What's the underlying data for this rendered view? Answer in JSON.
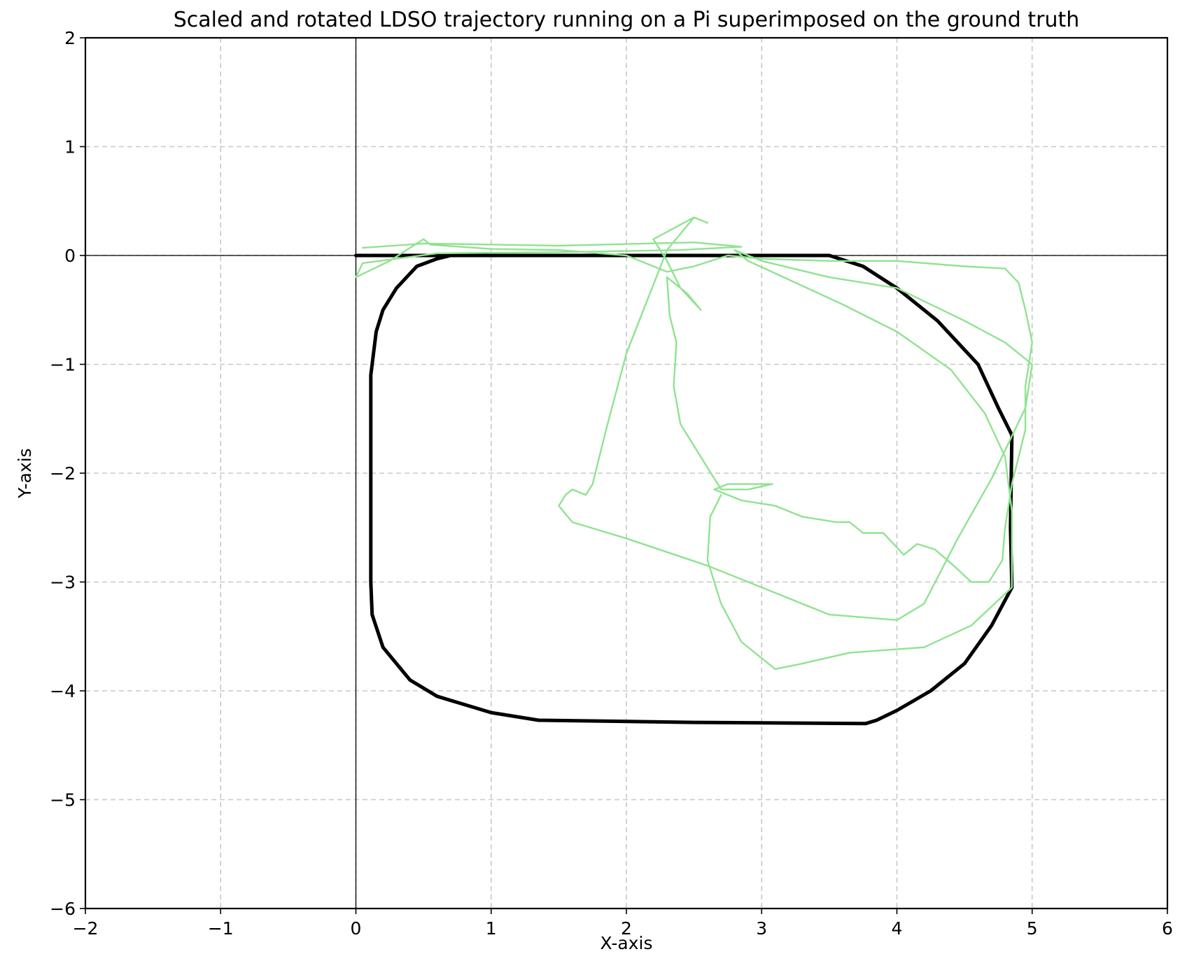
{
  "chart_data": {
    "type": "line",
    "title": "Scaled and rotated LDSO trajectory running on a Pi superimposed on the ground truth",
    "xlabel": "X-axis",
    "ylabel": "Y-axis",
    "xlim": [
      -2,
      6
    ],
    "ylim": [
      -6,
      2
    ],
    "xticks": [
      -2,
      -1,
      0,
      1,
      2,
      3,
      4,
      5,
      6
    ],
    "yticks": [
      -6,
      -5,
      -4,
      -3,
      -2,
      -1,
      0,
      1,
      2
    ],
    "xtick_labels": [
      "−2",
      "−1",
      "0",
      "1",
      "2",
      "3",
      "4",
      "5",
      "6"
    ],
    "ytick_labels": [
      "−6",
      "−5",
      "−4",
      "−3",
      "−2",
      "−1",
      "0",
      "1",
      "2"
    ],
    "grid": true,
    "reference_lines": {
      "x": 0,
      "y": 0
    },
    "series": [
      {
        "color": "#000000",
        "style": "solid-thick",
        "points": [
          [
            0.0,
            0.0
          ],
          [
            0.6,
            0.0
          ],
          [
            1.5,
            0.0
          ],
          [
            2.5,
            0.0
          ],
          [
            3.5,
            0.0
          ],
          [
            3.75,
            -0.1
          ],
          [
            4.0,
            -0.3
          ],
          [
            4.3,
            -0.6
          ],
          [
            4.6,
            -1.0
          ],
          [
            4.75,
            -1.4
          ],
          [
            4.85,
            -1.65
          ],
          [
            4.84,
            -2.5
          ],
          [
            4.85,
            -3.05
          ],
          [
            4.7,
            -3.4
          ],
          [
            4.5,
            -3.75
          ],
          [
            4.25,
            -4.0
          ],
          [
            4.0,
            -4.18
          ],
          [
            3.85,
            -4.27
          ],
          [
            3.77,
            -4.3
          ],
          [
            2.5,
            -4.29
          ],
          [
            1.35,
            -4.27
          ],
          [
            1.0,
            -4.2
          ],
          [
            0.6,
            -4.05
          ],
          [
            0.4,
            -3.9
          ],
          [
            0.2,
            -3.6
          ],
          [
            0.12,
            -3.3
          ],
          [
            0.11,
            -3.0
          ],
          [
            0.11,
            -2.0
          ],
          [
            0.11,
            -1.1
          ],
          [
            0.15,
            -0.7
          ],
          [
            0.2,
            -0.5
          ],
          [
            0.3,
            -0.3
          ],
          [
            0.45,
            -0.1
          ],
          [
            0.6,
            -0.03
          ],
          [
            0.7,
            0.0
          ]
        ]
      },
      {
        "color": "#90e390",
        "style": "solid-thin",
        "points": [
          [
            0.05,
            0.07
          ],
          [
            0.5,
            0.11
          ],
          [
            1.5,
            0.09
          ],
          [
            2.5,
            0.12
          ],
          [
            2.85,
            0.08
          ],
          [
            2.4,
            0.05
          ],
          [
            1.5,
            0.03
          ],
          [
            0.6,
            0.02
          ],
          [
            0.3,
            -0.03
          ],
          [
            0.05,
            -0.07
          ],
          [
            0.0,
            -0.2
          ],
          [
            0.25,
            -0.05
          ],
          [
            0.5,
            0.15
          ],
          [
            0.55,
            0.1
          ],
          [
            1.0,
            0.06
          ],
          [
            1.5,
            0.05
          ],
          [
            2.0,
            0.0
          ],
          [
            2.3,
            -0.15
          ],
          [
            2.5,
            -0.1
          ],
          [
            2.75,
            0.0
          ],
          [
            3.0,
            -0.03
          ],
          [
            3.5,
            -0.05
          ],
          [
            4.0,
            -0.05
          ],
          [
            4.5,
            -0.1
          ],
          [
            4.8,
            -0.12
          ],
          [
            4.9,
            -0.25
          ],
          [
            4.95,
            -0.5
          ],
          [
            5.0,
            -0.8
          ],
          [
            4.95,
            -1.2
          ],
          [
            4.95,
            -1.6
          ],
          [
            4.85,
            -2.1
          ],
          [
            4.8,
            -2.5
          ],
          [
            4.78,
            -2.8
          ],
          [
            4.68,
            -3.0
          ],
          [
            4.55,
            -3.0
          ],
          [
            4.42,
            -2.85
          ],
          [
            4.28,
            -2.7
          ],
          [
            4.15,
            -2.65
          ],
          [
            4.05,
            -2.75
          ],
          [
            3.9,
            -2.55
          ],
          [
            3.75,
            -2.55
          ],
          [
            3.65,
            -2.45
          ],
          [
            3.55,
            -2.45
          ],
          [
            3.3,
            -2.4
          ],
          [
            3.1,
            -2.3
          ],
          [
            2.85,
            -2.25
          ],
          [
            2.65,
            -2.15
          ],
          [
            2.75,
            -2.1
          ],
          [
            3.08,
            -2.1
          ],
          [
            2.9,
            -2.15
          ],
          [
            2.7,
            -2.15
          ],
          [
            2.55,
            -1.85
          ],
          [
            2.4,
            -1.55
          ],
          [
            2.35,
            -1.2
          ],
          [
            2.37,
            -0.8
          ],
          [
            2.32,
            -0.55
          ],
          [
            2.3,
            -0.2
          ],
          [
            2.45,
            -0.35
          ],
          [
            2.55,
            -0.5
          ],
          [
            2.4,
            -0.3
          ],
          [
            2.3,
            -0.05
          ],
          [
            2.2,
            0.15
          ],
          [
            2.5,
            0.35
          ],
          [
            2.6,
            0.3
          ],
          [
            2.5,
            0.35
          ],
          [
            2.3,
            0.05
          ],
          [
            2.0,
            -0.9
          ],
          [
            1.85,
            -1.6
          ],
          [
            1.75,
            -2.1
          ],
          [
            1.7,
            -2.2
          ],
          [
            1.6,
            -2.15
          ],
          [
            1.55,
            -2.2
          ],
          [
            1.5,
            -2.3
          ],
          [
            1.6,
            -2.45
          ],
          [
            2.0,
            -2.6
          ],
          [
            2.6,
            -2.85
          ],
          [
            3.0,
            -3.05
          ],
          [
            3.5,
            -3.3
          ],
          [
            4.0,
            -3.35
          ],
          [
            4.2,
            -3.2
          ],
          [
            4.45,
            -2.6
          ],
          [
            4.7,
            -2.05
          ],
          [
            4.95,
            -1.4
          ],
          [
            5.0,
            -1.0
          ],
          [
            4.8,
            -0.8
          ],
          [
            4.5,
            -0.6
          ],
          [
            4.0,
            -0.3
          ],
          [
            3.5,
            -0.2
          ],
          [
            3.0,
            -0.05
          ],
          [
            2.8,
            0.05
          ],
          [
            2.9,
            -0.05
          ],
          [
            3.25,
            -0.25
          ],
          [
            3.6,
            -0.45
          ],
          [
            4.0,
            -0.7
          ],
          [
            4.4,
            -1.05
          ],
          [
            4.65,
            -1.45
          ],
          [
            4.8,
            -1.85
          ],
          [
            4.85,
            -2.35
          ],
          [
            4.85,
            -2.75
          ],
          [
            4.85,
            -3.05
          ],
          [
            4.55,
            -3.4
          ],
          [
            4.2,
            -3.6
          ],
          [
            3.65,
            -3.65
          ],
          [
            3.3,
            -3.75
          ],
          [
            3.1,
            -3.8
          ],
          [
            2.85,
            -3.55
          ],
          [
            2.7,
            -3.2
          ],
          [
            2.6,
            -2.8
          ],
          [
            2.62,
            -2.4
          ],
          [
            2.7,
            -2.2
          ]
        ]
      }
    ]
  }
}
